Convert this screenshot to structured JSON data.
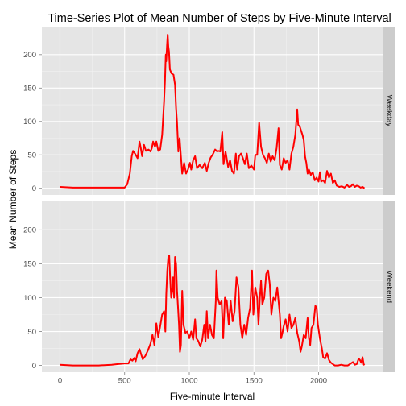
{
  "chart_data": {
    "type": "line",
    "title": "Time-Series Plot of Mean Number of Steps by Five-Minute Interval",
    "xlabel": "Five-minute Interval",
    "ylabel": "Mean Number of Steps",
    "xlim": [
      -140,
      2495
    ],
    "ylim": [
      -10,
      242
    ],
    "x_ticks": [
      0,
      500,
      1000,
      1500,
      2000
    ],
    "y_ticks": [
      0,
      50,
      100,
      150,
      200
    ],
    "grid": true,
    "line_color": "#ff0000",
    "panel_background": "#e5e5e5",
    "strip_background": "#cccccc",
    "panels": [
      {
        "name": "Weekday",
        "points": [
          [
            0,
            2
          ],
          [
            100,
            1
          ],
          [
            200,
            1
          ],
          [
            300,
            1
          ],
          [
            400,
            1
          ],
          [
            500,
            1
          ],
          [
            520,
            6
          ],
          [
            540,
            22
          ],
          [
            555,
            48
          ],
          [
            565,
            56
          ],
          [
            580,
            52
          ],
          [
            600,
            45
          ],
          [
            615,
            70
          ],
          [
            625,
            60
          ],
          [
            635,
            48
          ],
          [
            650,
            65
          ],
          [
            665,
            56
          ],
          [
            685,
            58
          ],
          [
            700,
            55
          ],
          [
            710,
            60
          ],
          [
            720,
            70
          ],
          [
            735,
            62
          ],
          [
            745,
            70
          ],
          [
            760,
            56
          ],
          [
            775,
            58
          ],
          [
            790,
            80
          ],
          [
            805,
            130
          ],
          [
            812,
            160
          ],
          [
            818,
            200
          ],
          [
            822,
            190
          ],
          [
            828,
            215
          ],
          [
            833,
            230
          ],
          [
            838,
            212
          ],
          [
            843,
            205
          ],
          [
            850,
            178
          ],
          [
            862,
            172
          ],
          [
            878,
            170
          ],
          [
            890,
            155
          ],
          [
            898,
            120
          ],
          [
            905,
            98
          ],
          [
            915,
            55
          ],
          [
            925,
            75
          ],
          [
            935,
            48
          ],
          [
            945,
            22
          ],
          [
            960,
            38
          ],
          [
            975,
            22
          ],
          [
            990,
            28
          ],
          [
            1005,
            38
          ],
          [
            1015,
            28
          ],
          [
            1030,
            42
          ],
          [
            1045,
            48
          ],
          [
            1060,
            30
          ],
          [
            1080,
            35
          ],
          [
            1100,
            30
          ],
          [
            1120,
            38
          ],
          [
            1135,
            26
          ],
          [
            1150,
            38
          ],
          [
            1165,
            46
          ],
          [
            1180,
            50
          ],
          [
            1200,
            58
          ],
          [
            1215,
            55
          ],
          [
            1225,
            56
          ],
          [
            1240,
            55
          ],
          [
            1255,
            84
          ],
          [
            1265,
            36
          ],
          [
            1280,
            55
          ],
          [
            1300,
            32
          ],
          [
            1315,
            42
          ],
          [
            1330,
            26
          ],
          [
            1345,
            22
          ],
          [
            1360,
            52
          ],
          [
            1370,
            28
          ],
          [
            1385,
            48
          ],
          [
            1400,
            52
          ],
          [
            1415,
            45
          ],
          [
            1430,
            36
          ],
          [
            1445,
            52
          ],
          [
            1460,
            30
          ],
          [
            1480,
            34
          ],
          [
            1500,
            28
          ],
          [
            1510,
            50
          ],
          [
            1525,
            50
          ],
          [
            1540,
            98
          ],
          [
            1555,
            62
          ],
          [
            1570,
            50
          ],
          [
            1585,
            45
          ],
          [
            1600,
            38
          ],
          [
            1615,
            52
          ],
          [
            1630,
            40
          ],
          [
            1645,
            48
          ],
          [
            1660,
            42
          ],
          [
            1675,
            60
          ],
          [
            1690,
            90
          ],
          [
            1700,
            35
          ],
          [
            1715,
            28
          ],
          [
            1730,
            45
          ],
          [
            1745,
            38
          ],
          [
            1760,
            42
          ],
          [
            1775,
            28
          ],
          [
            1790,
            52
          ],
          [
            1805,
            62
          ],
          [
            1820,
            80
          ],
          [
            1835,
            118
          ],
          [
            1842,
            95
          ],
          [
            1855,
            92
          ],
          [
            1865,
            86
          ],
          [
            1875,
            80
          ],
          [
            1885,
            72
          ],
          [
            1895,
            48
          ],
          [
            1905,
            38
          ],
          [
            1915,
            22
          ],
          [
            1925,
            28
          ],
          [
            1940,
            20
          ],
          [
            1955,
            24
          ],
          [
            1970,
            12
          ],
          [
            1985,
            16
          ],
          [
            2000,
            10
          ],
          [
            2010,
            24
          ],
          [
            2020,
            10
          ],
          [
            2035,
            12
          ],
          [
            2050,
            8
          ],
          [
            2065,
            26
          ],
          [
            2080,
            16
          ],
          [
            2095,
            22
          ],
          [
            2110,
            8
          ],
          [
            2125,
            12
          ],
          [
            2140,
            4
          ],
          [
            2160,
            2
          ],
          [
            2180,
            3
          ],
          [
            2200,
            1
          ],
          [
            2220,
            5
          ],
          [
            2235,
            2
          ],
          [
            2250,
            3
          ],
          [
            2265,
            6
          ],
          [
            2280,
            2
          ],
          [
            2295,
            4
          ],
          [
            2310,
            3
          ],
          [
            2325,
            1
          ],
          [
            2340,
            2
          ],
          [
            2355,
            0
          ]
        ]
      },
      {
        "name": "Weekend",
        "points": [
          [
            0,
            1
          ],
          [
            100,
            0
          ],
          [
            200,
            0
          ],
          [
            300,
            0
          ],
          [
            400,
            1
          ],
          [
            450,
            2
          ],
          [
            500,
            3
          ],
          [
            530,
            3
          ],
          [
            545,
            9
          ],
          [
            560,
            7
          ],
          [
            575,
            11
          ],
          [
            585,
            6
          ],
          [
            600,
            18
          ],
          [
            615,
            24
          ],
          [
            625,
            18
          ],
          [
            640,
            9
          ],
          [
            660,
            14
          ],
          [
            680,
            22
          ],
          [
            700,
            32
          ],
          [
            715,
            45
          ],
          [
            730,
            30
          ],
          [
            745,
            62
          ],
          [
            760,
            42
          ],
          [
            775,
            58
          ],
          [
            790,
            75
          ],
          [
            805,
            80
          ],
          [
            815,
            50
          ],
          [
            822,
            105
          ],
          [
            830,
            140
          ],
          [
            838,
            160
          ],
          [
            845,
            162
          ],
          [
            852,
            130
          ],
          [
            860,
            100
          ],
          [
            868,
            110
          ],
          [
            875,
            130
          ],
          [
            882,
            100
          ],
          [
            890,
            160
          ],
          [
            898,
            150
          ],
          [
            905,
            110
          ],
          [
            912,
            88
          ],
          [
            920,
            60
          ],
          [
            928,
            20
          ],
          [
            935,
            30
          ],
          [
            945,
            110
          ],
          [
            955,
            60
          ],
          [
            970,
            48
          ],
          [
            985,
            50
          ],
          [
            1000,
            40
          ],
          [
            1015,
            50
          ],
          [
            1030,
            38
          ],
          [
            1045,
            68
          ],
          [
            1055,
            40
          ],
          [
            1070,
            36
          ],
          [
            1085,
            28
          ],
          [
            1100,
            38
          ],
          [
            1115,
            60
          ],
          [
            1125,
            35
          ],
          [
            1135,
            80
          ],
          [
            1145,
            40
          ],
          [
            1160,
            60
          ],
          [
            1175,
            45
          ],
          [
            1190,
            40
          ],
          [
            1205,
            95
          ],
          [
            1210,
            140
          ],
          [
            1220,
            100
          ],
          [
            1235,
            90
          ],
          [
            1250,
            95
          ],
          [
            1262,
            40
          ],
          [
            1275,
            100
          ],
          [
            1290,
            95
          ],
          [
            1305,
            60
          ],
          [
            1320,
            95
          ],
          [
            1335,
            65
          ],
          [
            1350,
            80
          ],
          [
            1365,
            130
          ],
          [
            1380,
            115
          ],
          [
            1395,
            60
          ],
          [
            1410,
            40
          ],
          [
            1425,
            60
          ],
          [
            1440,
            45
          ],
          [
            1455,
            70
          ],
          [
            1470,
            85
          ],
          [
            1485,
            140
          ],
          [
            1495,
            75
          ],
          [
            1510,
            115
          ],
          [
            1525,
            100
          ],
          [
            1535,
            60
          ],
          [
            1545,
            98
          ],
          [
            1555,
            125
          ],
          [
            1565,
            90
          ],
          [
            1580,
            100
          ],
          [
            1595,
            135
          ],
          [
            1610,
            140
          ],
          [
            1622,
            120
          ],
          [
            1635,
            75
          ],
          [
            1650,
            100
          ],
          [
            1665,
            95
          ],
          [
            1680,
            115
          ],
          [
            1690,
            95
          ],
          [
            1700,
            75
          ],
          [
            1710,
            40
          ],
          [
            1720,
            48
          ],
          [
            1730,
            58
          ],
          [
            1745,
            68
          ],
          [
            1760,
            50
          ],
          [
            1775,
            75
          ],
          [
            1790,
            55
          ],
          [
            1805,
            60
          ],
          [
            1820,
            70
          ],
          [
            1835,
            48
          ],
          [
            1850,
            35
          ],
          [
            1860,
            20
          ],
          [
            1870,
            28
          ],
          [
            1885,
            45
          ],
          [
            1900,
            40
          ],
          [
            1915,
            70
          ],
          [
            1925,
            40
          ],
          [
            1935,
            30
          ],
          [
            1945,
            55
          ],
          [
            1960,
            60
          ],
          [
            1975,
            88
          ],
          [
            1985,
            85
          ],
          [
            1995,
            60
          ],
          [
            2010,
            40
          ],
          [
            2025,
            25
          ],
          [
            2035,
            12
          ],
          [
            2050,
            10
          ],
          [
            2065,
            18
          ],
          [
            2080,
            8
          ],
          [
            2095,
            4
          ],
          [
            2110,
            2
          ],
          [
            2125,
            0
          ],
          [
            2150,
            0
          ],
          [
            2175,
            1
          ],
          [
            2200,
            0
          ],
          [
            2225,
            0
          ],
          [
            2250,
            3
          ],
          [
            2265,
            5
          ],
          [
            2280,
            1
          ],
          [
            2295,
            2
          ],
          [
            2310,
            10
          ],
          [
            2320,
            8
          ],
          [
            2330,
            4
          ],
          [
            2340,
            12
          ],
          [
            2350,
            1
          ],
          [
            2355,
            2
          ]
        ]
      }
    ]
  }
}
